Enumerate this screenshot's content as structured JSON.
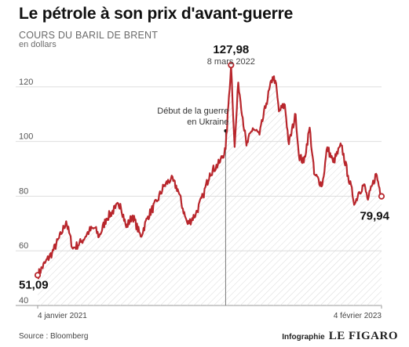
{
  "chart_data": {
    "type": "line",
    "title": "Le pétrole à son prix d'avant-guerre",
    "subtitle": "COURS DU BARIL DE BRENT",
    "unit_label": "en dollars",
    "ylim": [
      40,
      130
    ],
    "yticks": [
      40,
      60,
      80,
      100,
      120
    ],
    "x_range": [
      "2021-01-04",
      "2023-02-04"
    ],
    "x_tick_labels": [
      {
        "date": "2021-01-04",
        "label": "4 janvier 2021"
      },
      {
        "date": "2023-02-04",
        "label": "4 février 2023"
      }
    ],
    "series": [
      {
        "color": "#b8262c",
        "points": [
          [
            "2021-01-04",
            51.09
          ],
          [
            "2021-01-20",
            55.5
          ],
          [
            "2021-02-05",
            59.3
          ],
          [
            "2021-02-25",
            66.1
          ],
          [
            "2021-03-08",
            70.8
          ],
          [
            "2021-03-23",
            60.8
          ],
          [
            "2021-04-10",
            63.2
          ],
          [
            "2021-04-28",
            67.3
          ],
          [
            "2021-05-10",
            68.4
          ],
          [
            "2021-05-20",
            65.2
          ],
          [
            "2021-06-05",
            71.8
          ],
          [
            "2021-06-25",
            75.6
          ],
          [
            "2021-07-06",
            77.2
          ],
          [
            "2021-07-19",
            68.6
          ],
          [
            "2021-08-02",
            72.9
          ],
          [
            "2021-08-20",
            65.2
          ],
          [
            "2021-09-05",
            72.6
          ],
          [
            "2021-09-25",
            78.1
          ],
          [
            "2021-10-10",
            83.6
          ],
          [
            "2021-10-26",
            86.4
          ],
          [
            "2021-11-10",
            82.6
          ],
          [
            "2021-11-26",
            72.7
          ],
          [
            "2021-12-02",
            69.8
          ],
          [
            "2021-12-20",
            73.5
          ],
          [
            "2022-01-05",
            80.1
          ],
          [
            "2022-01-20",
            88.4
          ],
          [
            "2022-02-10",
            92.1
          ],
          [
            "2022-02-24",
            97.2
          ],
          [
            "2022-03-02",
            113.0
          ],
          [
            "2022-03-08",
            127.98
          ],
          [
            "2022-03-16",
            98.0
          ],
          [
            "2022-03-24",
            121.6
          ],
          [
            "2022-04-11",
            98.5
          ],
          [
            "2022-04-25",
            104.9
          ],
          [
            "2022-05-10",
            102.5
          ],
          [
            "2022-05-25",
            114.0
          ],
          [
            "2022-06-08",
            123.6
          ],
          [
            "2022-06-14",
            122.3
          ],
          [
            "2022-06-22",
            111.0
          ],
          [
            "2022-07-05",
            113.5
          ],
          [
            "2022-07-14",
            99.0
          ],
          [
            "2022-07-29",
            110.0
          ],
          [
            "2022-08-05",
            95.0
          ],
          [
            "2022-08-16",
            92.3
          ],
          [
            "2022-08-29",
            105.1
          ],
          [
            "2022-09-08",
            88.0
          ],
          [
            "2022-09-26",
            84.1
          ],
          [
            "2022-10-07",
            97.9
          ],
          [
            "2022-10-20",
            92.4
          ],
          [
            "2022-11-07",
            98.6
          ],
          [
            "2022-11-22",
            87.5
          ],
          [
            "2022-12-07",
            77.2
          ],
          [
            "2022-12-15",
            81.2
          ],
          [
            "2022-12-27",
            84.3
          ],
          [
            "2023-01-05",
            78.7
          ],
          [
            "2023-01-23",
            88.2
          ],
          [
            "2023-02-04",
            79.94
          ]
        ]
      }
    ],
    "event": {
      "date": "2022-02-24",
      "label_line1": "Début de la guerre",
      "label_line2": "en Ukraine"
    },
    "annotations": {
      "start": {
        "date": "2021-01-04",
        "value": 51.09,
        "text": "51,09"
      },
      "peak": {
        "date": "2022-03-08",
        "value": 127.98,
        "text": "127,98",
        "sub": "8 mars 2022"
      },
      "end": {
        "date": "2023-02-04",
        "value": 79.94,
        "text": "79,94"
      }
    },
    "grid": true,
    "area_hatch": true
  },
  "footer": {
    "source": "Source : Bloomberg",
    "credit_prefix": "Infographie",
    "credit_brand": "LE FIGARO"
  }
}
